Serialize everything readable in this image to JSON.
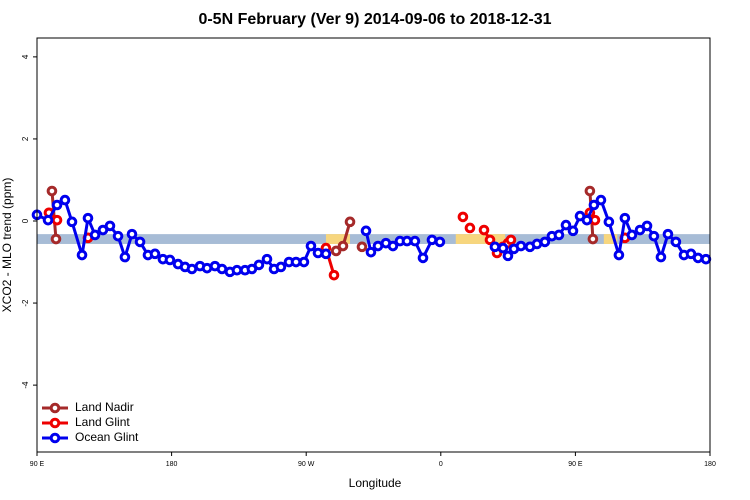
{
  "chart_data": {
    "type": "line",
    "title": "0-5N February (Ver 9)   2014-09-06 to 2018-12-31",
    "x_label": "Longitude",
    "y_label": "XCO2 - MLO trend (ppm)",
    "xlim": [
      90,
      540
    ],
    "ylim": [
      -5.63,
      4.46
    ],
    "xticks": [
      {
        "value": 90,
        "label": "90 E"
      },
      180,
      {
        "value": 270,
        "label": "90 W"
      },
      {
        "value": 360,
        "label": "0"
      },
      {
        "value": 450,
        "label": "90 E"
      },
      {
        "value": 540,
        "label": "180"
      }
    ],
    "yticks": [
      -4,
      -2,
      0,
      2,
      4
    ],
    "grid": false,
    "legend_position": "bottom-left",
    "band": {
      "low": -0.56,
      "high": -0.32,
      "color": "#a7bcd6",
      "highlight_color": "#f7d67e",
      "highlights": [
        [
          283.2,
          299.3
        ],
        [
          370,
          403
        ],
        [
          469,
          478
        ]
      ]
    },
    "series": [
      {
        "name": "Land Nadir",
        "color": "#a52a2a",
        "x": [
          100,
          102.7,
          null,
          290,
          294.6,
          299.3,
          null,
          307.3,
          null,
          459.7,
          461.7
        ],
        "values": [
          0.73,
          -0.44,
          null,
          -0.73,
          -0.61,
          -0.02,
          null,
          -0.63,
          null,
          0.73,
          -0.44
        ]
      },
      {
        "name": "Land Glint",
        "color": "#ee0000",
        "x": [
          98,
          103.4,
          null,
          124.1,
          null,
          283.2,
          288.6,
          null,
          374.8,
          null,
          379.5,
          null,
          388.9,
          392.9,
          397.6,
          401.6,
          404.9,
          406.9,
          null,
          459.7,
          463.1,
          null,
          483.1
        ],
        "values": [
          0.2,
          0.02,
          null,
          -0.41,
          null,
          -0.66,
          -1.32,
          null,
          0.1,
          null,
          -0.17,
          null,
          -0.22,
          -0.46,
          -0.78,
          -0.63,
          -0.54,
          -0.46,
          null,
          0.2,
          0.02,
          null,
          -0.41
        ]
      },
      {
        "name": "Ocean Glint",
        "color": "#0000ee",
        "x": [
          90,
          97.4,
          103.4,
          108.7,
          113.4,
          120.1,
          124.1,
          128.8,
          134.1,
          138.8,
          144.2,
          148.8,
          153.5,
          158.9,
          164.2,
          168.9,
          174.2,
          178.9,
          184.3,
          189,
          193.6,
          199,
          203.7,
          209,
          213.7,
          219,
          223.7,
          229.1,
          233.7,
          238.4,
          243.8,
          248.5,
          253.1,
          258.5,
          263.2,
          268.5,
          273.2,
          277.9,
          283.2,
          null,
          310,
          313.3,
          318,
          323.3,
          328,
          332.7,
          337.4,
          342.7,
          348.1,
          354.1,
          359.4,
          null,
          396.2,
          401.6,
          404.9,
          408.9,
          413.6,
          419.6,
          424.3,
          429.6,
          434.3,
          439,
          443.7,
          448.4,
          453.1,
          457.7,
          462.4,
          467.1,
          472.4,
          479.1,
          483.1,
          487.8,
          493.2,
          497.9,
          502.5,
          507.2,
          511.9,
          517.2,
          522.6,
          527.3,
          532,
          537.3
        ],
        "values": [
          0.15,
          0.02,
          0.39,
          0.51,
          -0.02,
          -0.83,
          0.07,
          -0.34,
          -0.22,
          -0.12,
          -0.37,
          -0.88,
          -0.32,
          -0.51,
          -0.83,
          -0.8,
          -0.93,
          -0.95,
          -1.05,
          -1.12,
          -1.17,
          -1.1,
          -1.15,
          -1.1,
          -1.17,
          -1.24,
          -1.2,
          -1.2,
          -1.17,
          -1.07,
          -0.93,
          -1.17,
          -1.12,
          -1.0,
          -1.0,
          -1.0,
          -0.61,
          -0.78,
          -0.8,
          null,
          -0.24,
          -0.76,
          -0.61,
          -0.54,
          -0.61,
          -0.49,
          -0.49,
          -0.49,
          -0.9,
          -0.46,
          -0.51,
          null,
          -0.63,
          -0.66,
          -0.85,
          -0.68,
          -0.61,
          -0.63,
          -0.56,
          -0.51,
          -0.37,
          -0.34,
          -0.1,
          -0.24,
          0.12,
          0.02,
          0.39,
          0.51,
          -0.02,
          -0.83,
          0.07,
          -0.34,
          -0.22,
          -0.12,
          -0.37,
          -0.88,
          -0.32,
          -0.51,
          -0.83,
          -0.8,
          -0.9,
          -0.93
        ]
      }
    ]
  }
}
